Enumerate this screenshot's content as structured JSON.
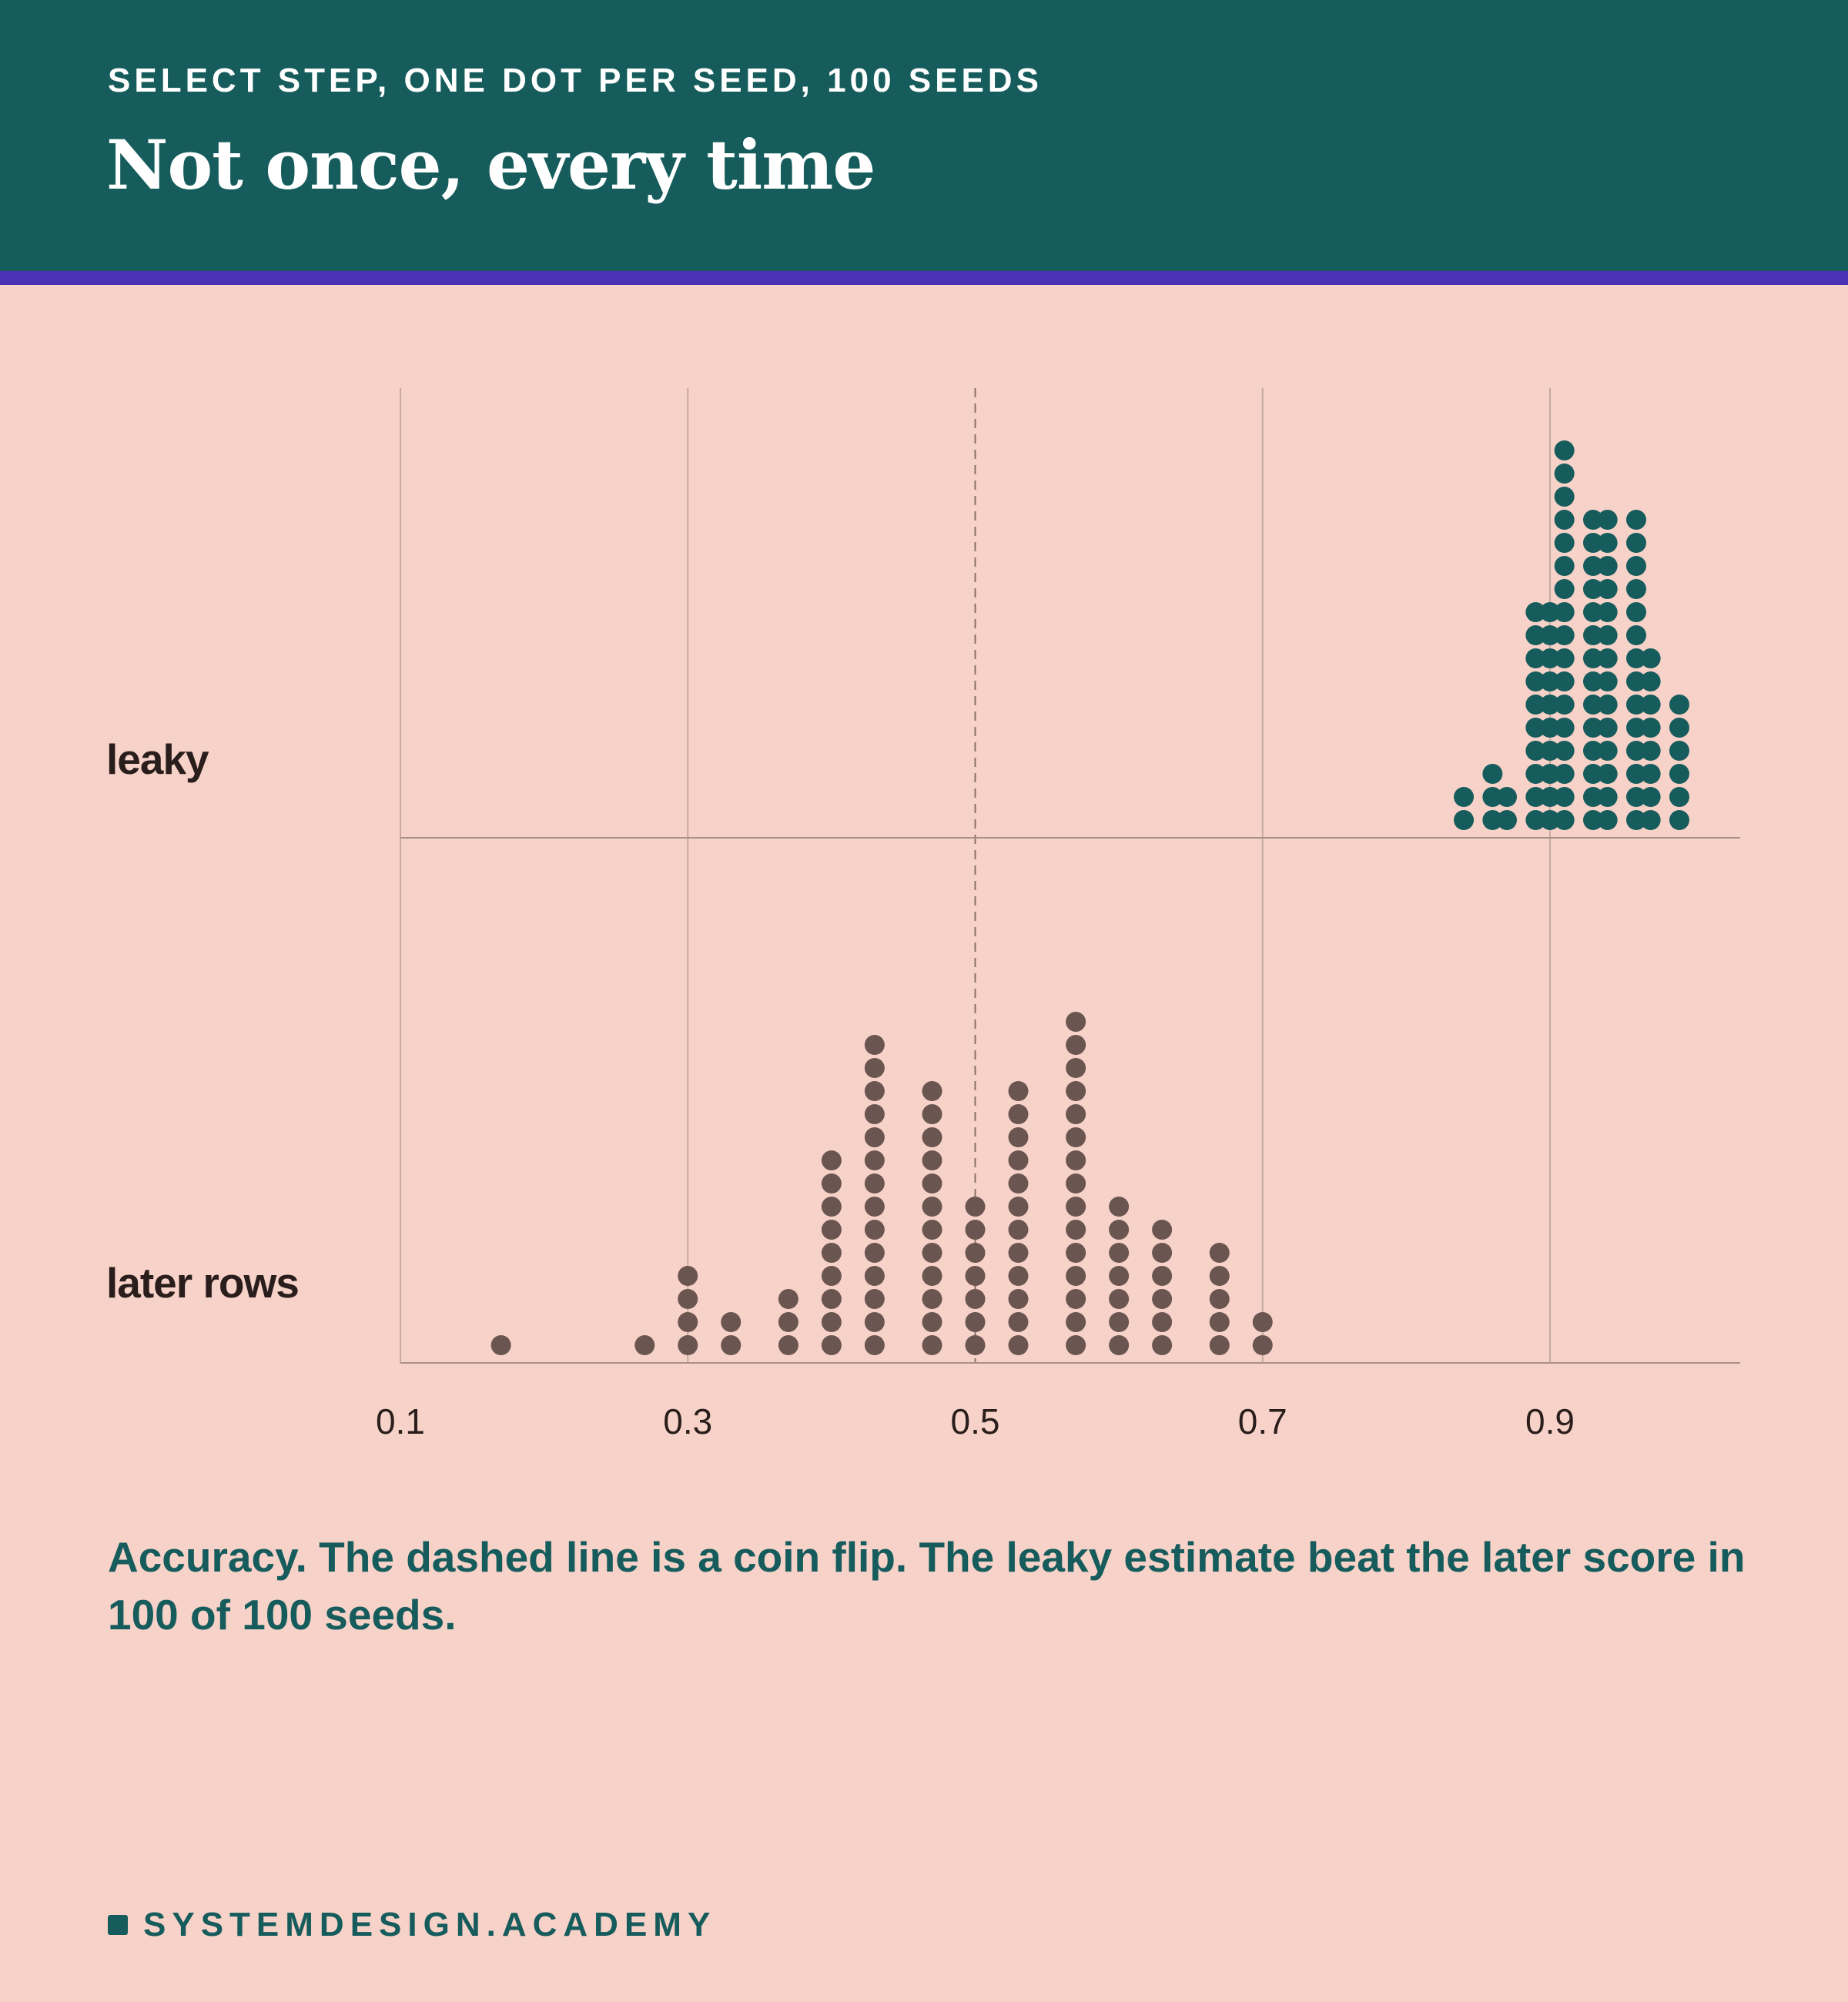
{
  "header": {
    "kicker": "SELECT STEP, ONE DOT PER SEED, 100 SEEDS",
    "title": "Not once, every time"
  },
  "caption": "Accuracy. The dashed line is a coin flip. The leaky estimate beat the later score in 100 of 100 seeds.",
  "footer": {
    "brand": "SYSTEMDESIGN.ACADEMY"
  },
  "colors": {
    "background": "#f7d2c8",
    "header": "#165c5c",
    "accent_rule": "#4b32b4",
    "leaky_dots": "#165c5c",
    "later_dots": "#6b5550",
    "label_text": "#2a1e1c"
  },
  "chart_data": {
    "type": "scatter",
    "subtype": "dot-plot",
    "xlim": [
      0.1,
      1.03
    ],
    "x_ticks": [
      "0.1",
      "0.3",
      "0.5",
      "0.7",
      "0.9"
    ],
    "grid": true,
    "reference_line": {
      "x": 0.5,
      "style": "dashed"
    },
    "series": [
      {
        "name": "leaky",
        "color": "#165c5c",
        "bins": [
          {
            "x": 0.84,
            "count": 2
          },
          {
            "x": 0.86,
            "count": 3
          },
          {
            "x": 0.87,
            "count": 2
          },
          {
            "x": 0.89,
            "count": 10
          },
          {
            "x": 0.9,
            "count": 10
          },
          {
            "x": 0.91,
            "count": 17
          },
          {
            "x": 0.93,
            "count": 14
          },
          {
            "x": 0.94,
            "count": 14
          },
          {
            "x": 0.96,
            "count": 14
          },
          {
            "x": 0.97,
            "count": 8
          },
          {
            "x": 0.99,
            "count": 6
          }
        ]
      },
      {
        "name": "later rows",
        "color": "#6b5550",
        "bins": [
          {
            "x": 0.17,
            "count": 1
          },
          {
            "x": 0.27,
            "count": 1
          },
          {
            "x": 0.3,
            "count": 4
          },
          {
            "x": 0.33,
            "count": 2
          },
          {
            "x": 0.37,
            "count": 3
          },
          {
            "x": 0.4,
            "count": 9
          },
          {
            "x": 0.43,
            "count": 14
          },
          {
            "x": 0.47,
            "count": 12
          },
          {
            "x": 0.5,
            "count": 7
          },
          {
            "x": 0.53,
            "count": 12
          },
          {
            "x": 0.57,
            "count": 15
          },
          {
            "x": 0.6,
            "count": 7
          },
          {
            "x": 0.63,
            "count": 6
          },
          {
            "x": 0.67,
            "count": 5
          },
          {
            "x": 0.7,
            "count": 2
          }
        ]
      }
    ]
  }
}
